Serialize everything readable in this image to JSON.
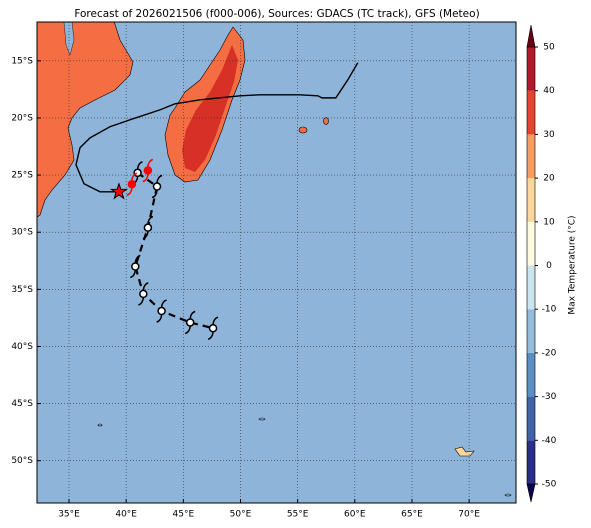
{
  "chart_data": {
    "type": "map",
    "title": "Forecast of 2026021506 (f000-006), Sources: GDACS (TC track), GFS (Meteo)",
    "xlim": [
      32.2,
      74.1
    ],
    "ylim": [
      -53.7,
      -11.6
    ],
    "xticks": [
      {
        "value": 35,
        "label": "35°E"
      },
      {
        "value": 40,
        "label": "40°E"
      },
      {
        "value": 45,
        "label": "45°E"
      },
      {
        "value": 50,
        "label": "50°E"
      },
      {
        "value": 55,
        "label": "55°E"
      },
      {
        "value": 60,
        "label": "60°E"
      },
      {
        "value": 65,
        "label": "65°E"
      },
      {
        "value": 70,
        "label": "70°E"
      }
    ],
    "yticks": [
      {
        "value": -15,
        "label": "15°S"
      },
      {
        "value": -20,
        "label": "20°S"
      },
      {
        "value": -25,
        "label": "25°S"
      },
      {
        "value": -30,
        "label": "30°S"
      },
      {
        "value": -35,
        "label": "35°S"
      },
      {
        "value": -40,
        "label": "40°S"
      },
      {
        "value": -45,
        "label": "45°S"
      },
      {
        "value": -50,
        "label": "50°S"
      }
    ],
    "grid": true,
    "ocean_color": "#8fb4d9",
    "colorbar": {
      "label": "Max Temperature (°C)",
      "lim": [
        -50,
        50
      ],
      "ticks": [
        -50,
        -40,
        -30,
        -20,
        -10,
        0,
        10,
        20,
        30,
        40,
        50
      ],
      "colors": [
        "#2b2f8a",
        "#3f62a8",
        "#5b8fc4",
        "#93bbdb",
        "#cbe6f0",
        "#fdfbe0",
        "#fdd79a",
        "#f99d5e",
        "#e4452f",
        "#b11a2a"
      ],
      "extend_colors": [
        "#08064a",
        "#6a0017"
      ]
    },
    "observed_track": {
      "color": "#000000",
      "lon": [
        60.26,
        59.39,
        58.34,
        57.12,
        56.77,
        55.19,
        51.7,
        49.95,
        46.45,
        44.27,
        42.95,
        40.33,
        38.58,
        36.84,
        35.96,
        35.61,
        36.31,
        37.71,
        39.37
      ],
      "lat": [
        -15.17,
        -16.66,
        -18.24,
        -18.24,
        -18.06,
        -17.97,
        -17.97,
        -18.06,
        -18.41,
        -18.76,
        -19.29,
        -20.16,
        -20.77,
        -21.74,
        -22.61,
        -24.1,
        -25.76,
        -26.46,
        -26.46
      ]
    },
    "forecast_track": {
      "color": "#000000",
      "lon": [
        41.0,
        42.7,
        41.9,
        40.8,
        41.5,
        43.1,
        45.6,
        47.6
      ],
      "lat": [
        -24.8,
        -26.0,
        -29.6,
        -33.0,
        -35.4,
        -36.9,
        -37.9,
        -38.4
      ]
    },
    "current_positions": {
      "color": "#ff0000",
      "lon": [
        40.5,
        41.9
      ],
      "lat": [
        -25.8,
        -24.6
      ]
    },
    "storm_position": {
      "color": "#ff0000",
      "lon": 39.37,
      "lat": -26.46
    }
  }
}
